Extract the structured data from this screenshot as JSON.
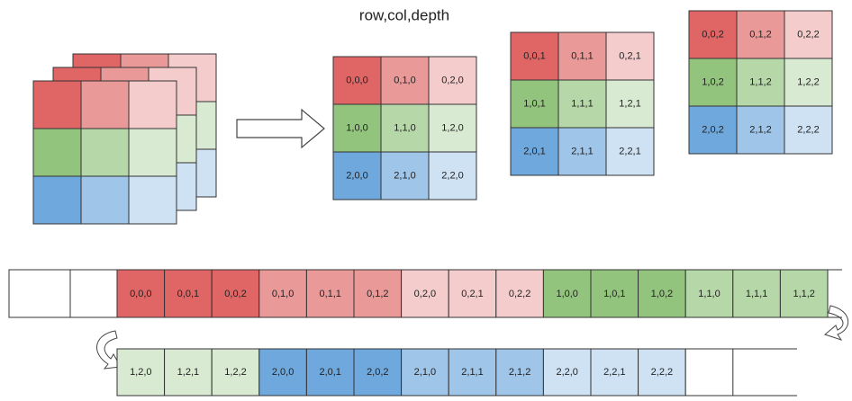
{
  "title": "row,col,depth",
  "grids": [
    {
      "cells": [
        [
          "0,0,0",
          "0,1,0",
          "0,2,0"
        ],
        [
          "1,0,0",
          "1,1,0",
          "1,2,0"
        ],
        [
          "2,0,0",
          "2,1,0",
          "2,2,0"
        ]
      ]
    },
    {
      "cells": [
        [
          "0,0,1",
          "0,1,1",
          "0,2,1"
        ],
        [
          "1,0,1",
          "1,1,1",
          "1,2,1"
        ],
        [
          "2,0,1",
          "2,1,1",
          "2,2,1"
        ]
      ]
    },
    {
      "cells": [
        [
          "0,0,2",
          "0,1,2",
          "0,2,2"
        ],
        [
          "1,0,2",
          "1,1,2",
          "1,2,2"
        ],
        [
          "2,0,2",
          "2,1,2",
          "2,2,2"
        ]
      ]
    }
  ],
  "strip_top": [
    "0,0,0",
    "0,0,1",
    "0,0,2",
    "0,1,0",
    "0,1,1",
    "0,1,2",
    "0,2,0",
    "0,2,1",
    "0,2,2",
    "1,0,0",
    "1,0,1",
    "1,0,2",
    "1,1,0",
    "1,1,1",
    "1,1,2"
  ],
  "strip_bottom": [
    "1,2,0",
    "1,2,1",
    "1,2,2",
    "2,0,0",
    "2,0,1",
    "2,0,2",
    "2,1,0",
    "2,1,1",
    "2,1,2",
    "2,2,0",
    "2,2,1",
    "2,2,2"
  ]
}
